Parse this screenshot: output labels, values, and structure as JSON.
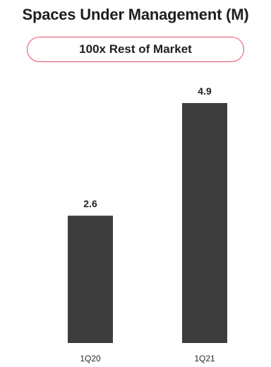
{
  "chart_data": {
    "type": "bar",
    "title": "Spaces Under Management (M)",
    "callout": "100x Rest of Market",
    "categories": [
      "1Q20",
      "1Q21"
    ],
    "values": [
      2.6,
      4.9
    ],
    "data_labels": [
      "2.6",
      "4.9"
    ],
    "xlabel": "",
    "ylabel": "",
    "ylim": [
      0,
      4.9
    ],
    "grid": false,
    "legend": "none"
  },
  "colors": {
    "bar": "#3d3d3d",
    "callout_border": "#e8506f",
    "text": "#1f1f1f"
  }
}
